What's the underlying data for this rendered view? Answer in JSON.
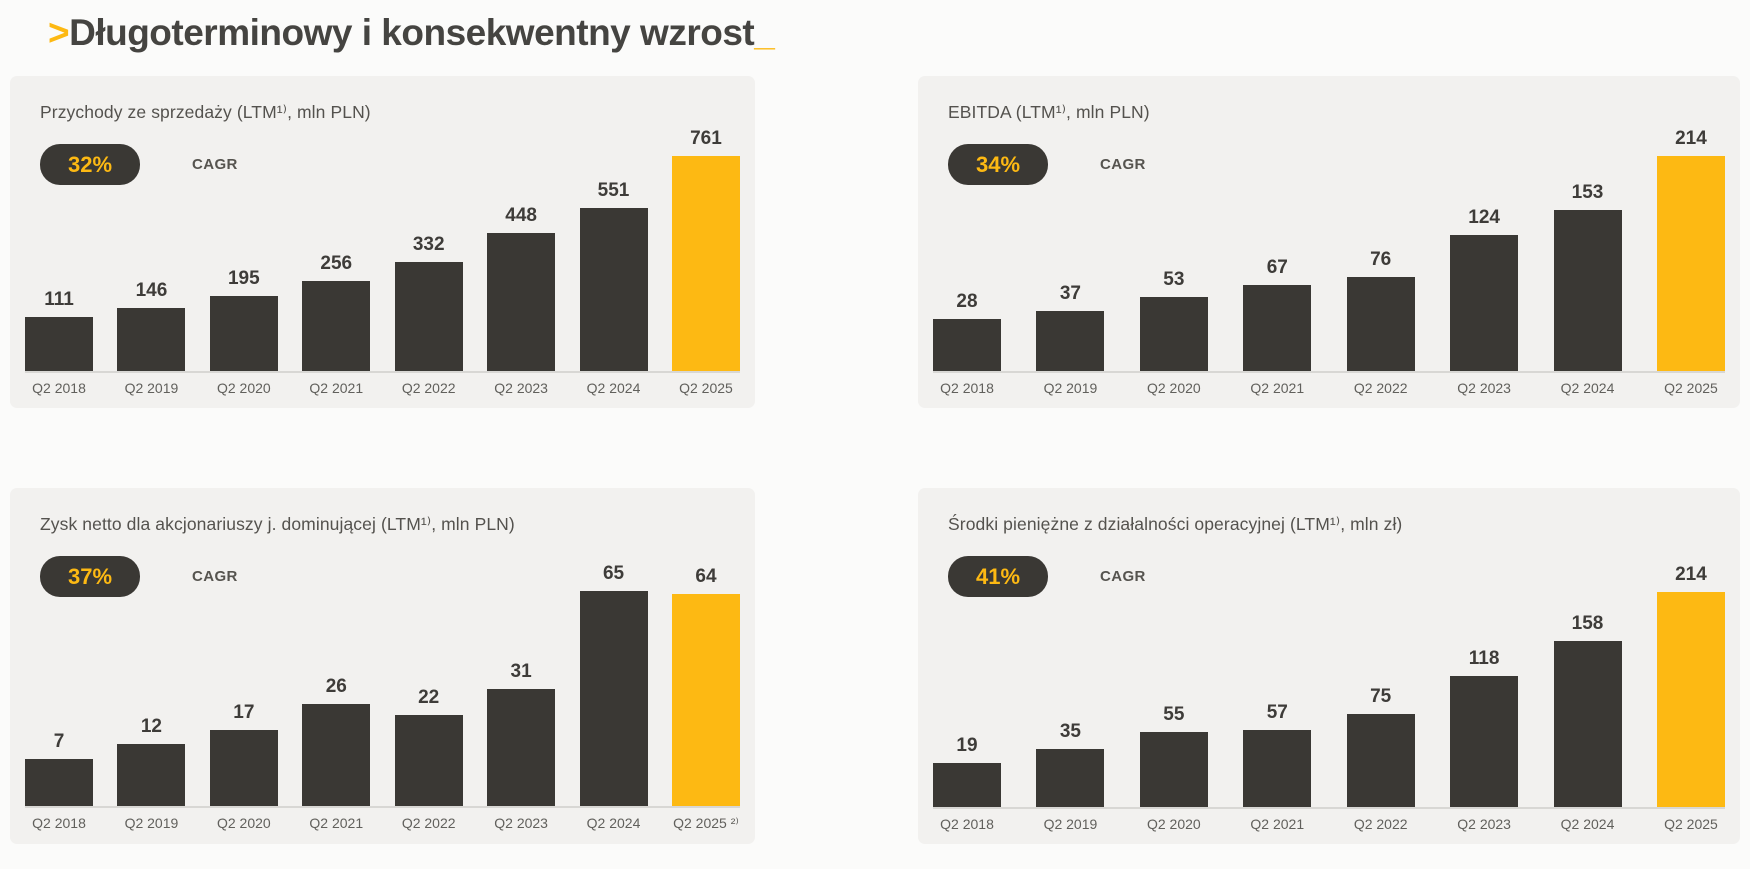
{
  "header": {
    "arrow": ">",
    "title": "Długoterminowy i konsekwentny wzrost",
    "cursor": "_"
  },
  "colors": {
    "accent": "#FDB913",
    "bar_dark": "#3A3834"
  },
  "chart_data": [
    {
      "type": "bar",
      "title": "Przychody ze sprzedaży (LTM¹⁾, mln PLN)",
      "cagr": "32%",
      "cagr_label": "CAGR",
      "categories": [
        "Q2 2018",
        "Q2 2019",
        "Q2 2020",
        "Q2 2021",
        "Q2 2022",
        "Q2 2023",
        "Q2 2024",
        "Q2 2025"
      ],
      "values": [
        111,
        146,
        195,
        256,
        332,
        448,
        551,
        761
      ],
      "highlight_index": 7,
      "bar_color": "#3A3834",
      "highlight_color": "#FDB913",
      "ylim": [
        0,
        800
      ],
      "grid": false,
      "legend": "none"
    },
    {
      "type": "bar",
      "title": "EBITDA (LTM¹⁾, mln PLN)",
      "cagr": "34%",
      "cagr_label": "CAGR",
      "categories": [
        "Q2 2018",
        "Q2 2019",
        "Q2 2020",
        "Q2 2021",
        "Q2 2022",
        "Q2 2023",
        "Q2 2024",
        "Q2 2025"
      ],
      "values": [
        28,
        37,
        53,
        67,
        76,
        124,
        153,
        214
      ],
      "highlight_index": 7,
      "bar_color": "#3A3834",
      "highlight_color": "#FDB913",
      "ylim": [
        0,
        230
      ],
      "grid": false,
      "legend": "none"
    },
    {
      "type": "bar",
      "title": "Zysk netto dla akcjonariuszy j. dominującej (LTM¹⁾, mln PLN)",
      "cagr": "37%",
      "cagr_label": "CAGR",
      "categories": [
        "Q2 2018",
        "Q2 2019",
        "Q2 2020",
        "Q2 2021",
        "Q2 2022",
        "Q2 2023",
        "Q2 2024",
        "Q2 2025 ²⁾"
      ],
      "values": [
        7,
        12,
        17,
        26,
        22,
        31,
        65,
        64
      ],
      "highlight_index": 7,
      "bar_color": "#3A3834",
      "highlight_color": "#FDB913",
      "ylim": [
        0,
        70
      ],
      "grid": false,
      "legend": "none"
    },
    {
      "type": "bar",
      "title": "Środki pieniężne z działalności operacyjnej (LTM¹⁾, mln zł)",
      "cagr": "41%",
      "cagr_label": "CAGR",
      "categories": [
        "Q2 2018",
        "Q2 2019",
        "Q2 2020",
        "Q2 2021",
        "Q2 2022",
        "Q2 2023",
        "Q2 2024",
        "Q2 2025"
      ],
      "values": [
        19,
        35,
        55,
        57,
        75,
        118,
        158,
        214
      ],
      "highlight_index": 7,
      "bar_color": "#3A3834",
      "highlight_color": "#FDB913",
      "ylim": [
        0,
        230
      ],
      "grid": false,
      "legend": "none"
    }
  ]
}
